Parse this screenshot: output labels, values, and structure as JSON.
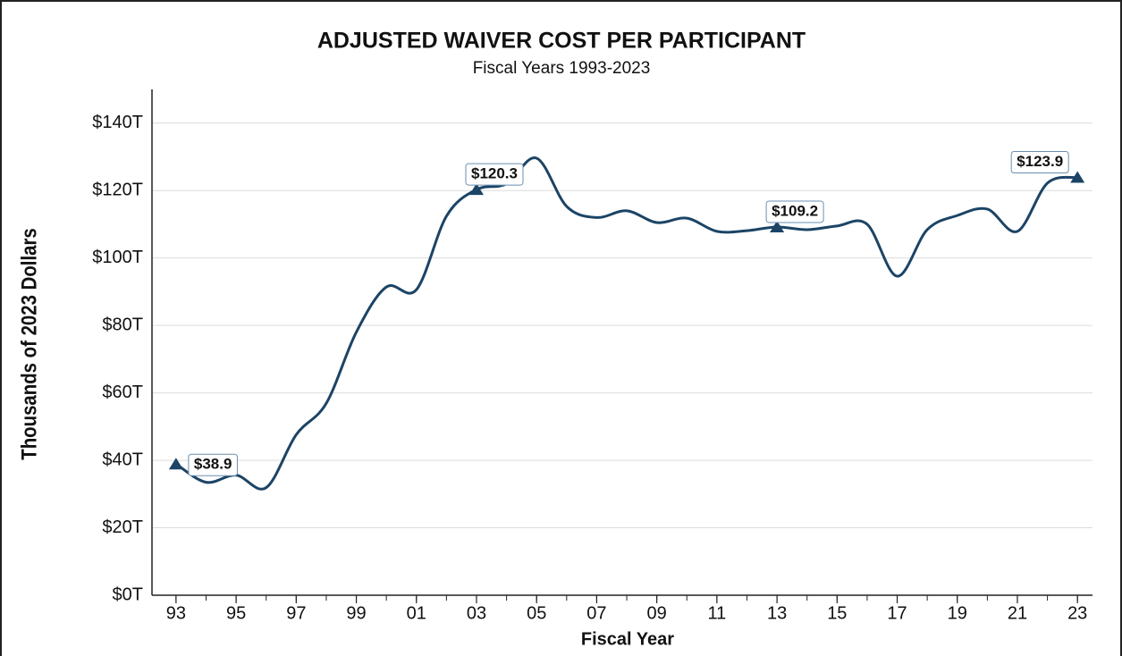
{
  "chart_data": {
    "type": "line",
    "title": "ADJUSTED WAIVER COST PER PARTICIPANT",
    "subtitle": "Fiscal Years 1993-2023",
    "x_label": "Fiscal Year",
    "y_label": "Thousands of 2023 Dollars",
    "x": [
      1993,
      1994,
      1995,
      1996,
      1997,
      1998,
      1999,
      2000,
      2001,
      2002,
      2003,
      2004,
      2005,
      2006,
      2007,
      2008,
      2009,
      2010,
      2011,
      2012,
      2013,
      2014,
      2015,
      2016,
      2017,
      2018,
      2019,
      2020,
      2021,
      2022,
      2023
    ],
    "values": [
      38.9,
      33.5,
      35.6,
      31.9,
      47.6,
      56.9,
      78,
      91.4,
      90.6,
      112.4,
      120.3,
      122,
      129.6,
      115.3,
      112,
      114,
      110.5,
      111.8,
      107.9,
      108.1,
      109.2,
      108.4,
      109.5,
      110,
      94.6,
      108.4,
      112.6,
      114.5,
      107.9,
      122.2,
      123.9
    ],
    "value_labels": [
      "$38.9",
      null,
      null,
      null,
      null,
      null,
      null,
      null,
      null,
      null,
      "$120.3",
      null,
      null,
      null,
      null,
      null,
      null,
      null,
      null,
      null,
      "$109.2",
      null,
      null,
      null,
      null,
      null,
      null,
      null,
      null,
      null,
      "$123.9"
    ],
    "color": "#1b4466",
    "xlim": [
      1992.2,
      2023.5
    ],
    "xticks": [
      {
        "value": 1993,
        "label": "93"
      },
      {
        "value": 1995,
        "label": "95"
      },
      {
        "value": 1997,
        "label": "97"
      },
      {
        "value": 1999,
        "label": "99"
      },
      {
        "value": 2001,
        "label": "01"
      },
      {
        "value": 2003,
        "label": "03"
      },
      {
        "value": 2005,
        "label": "05"
      },
      {
        "value": 2007,
        "label": "07"
      },
      {
        "value": 2009,
        "label": "09"
      },
      {
        "value": 2011,
        "label": "11"
      },
      {
        "value": 2013,
        "label": "13"
      },
      {
        "value": 2015,
        "label": "15"
      },
      {
        "value": 2017,
        "label": "17"
      },
      {
        "value": 2019,
        "label": "19"
      },
      {
        "value": 2021,
        "label": "21"
      },
      {
        "value": 2023,
        "label": "23"
      }
    ],
    "ylim": [
      0,
      150
    ],
    "yticks": [
      {
        "value": 0,
        "label": "$0T"
      },
      {
        "value": 20,
        "label": "$20T"
      },
      {
        "value": 40,
        "label": "$40T"
      },
      {
        "value": 60,
        "label": "$60T"
      },
      {
        "value": 80,
        "label": "$80T"
      },
      {
        "value": 100,
        "label": "$100T"
      },
      {
        "value": 120,
        "label": "$120T"
      },
      {
        "value": 140,
        "label": "$140T"
      }
    ],
    "grid": true
  }
}
